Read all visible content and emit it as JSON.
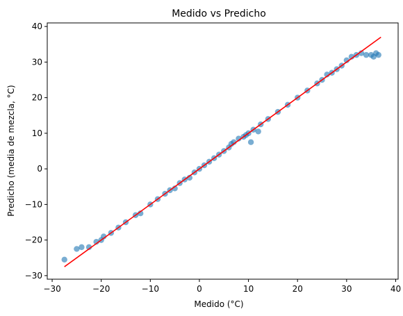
{
  "chart_data": {
    "type": "scatter",
    "title": "Medido vs Predicho",
    "xlabel": "Medido (°C)",
    "ylabel": "Predicho (media de mezcla, °C)",
    "xlim": [
      -31,
      40.5
    ],
    "ylim": [
      -31,
      41
    ],
    "xticks": [
      -30,
      -20,
      -10,
      0,
      10,
      20,
      30,
      40
    ],
    "yticks": [
      -30,
      -20,
      -10,
      0,
      10,
      20,
      30,
      40
    ],
    "grid": false,
    "marker_color": "#1f77b4",
    "line_color": "#ff0000",
    "reference_line": {
      "x": [
        -27.5,
        37
      ],
      "y": [
        -27.5,
        37
      ]
    },
    "points": {
      "x": [
        -27.5,
        -25,
        -24,
        -22.5,
        -21,
        -20,
        -19.5,
        -18,
        -16.5,
        -15,
        -13,
        -12,
        -10,
        -8.5,
        -7,
        -6,
        -5,
        -4,
        -3,
        -2,
        -1,
        0,
        1,
        2,
        3,
        4,
        5,
        6,
        6.5,
        7,
        8,
        9,
        9.5,
        10,
        10.5,
        11,
        12,
        12.5,
        14,
        16,
        18,
        20,
        22,
        24,
        25,
        26,
        27,
        28,
        29,
        30,
        31,
        32,
        33,
        34,
        35,
        35.5,
        36,
        36.5
      ],
      "y": [
        -25.5,
        -22.5,
        -22,
        -22,
        -20.5,
        -20,
        -19,
        -18,
        -16.5,
        -15,
        -13,
        -12.5,
        -10,
        -8.5,
        -7,
        -6,
        -5.5,
        -4,
        -3,
        -2.5,
        -1,
        0,
        1,
        2,
        3,
        4,
        5,
        6,
        7,
        7.5,
        8.5,
        9,
        9.5,
        10,
        7.5,
        11,
        10.5,
        12.5,
        14,
        16,
        18,
        20,
        22,
        24,
        25,
        26.5,
        27,
        28,
        29,
        30.5,
        31.5,
        32,
        32.5,
        32,
        32,
        31.5,
        32.5,
        32
      ]
    }
  }
}
